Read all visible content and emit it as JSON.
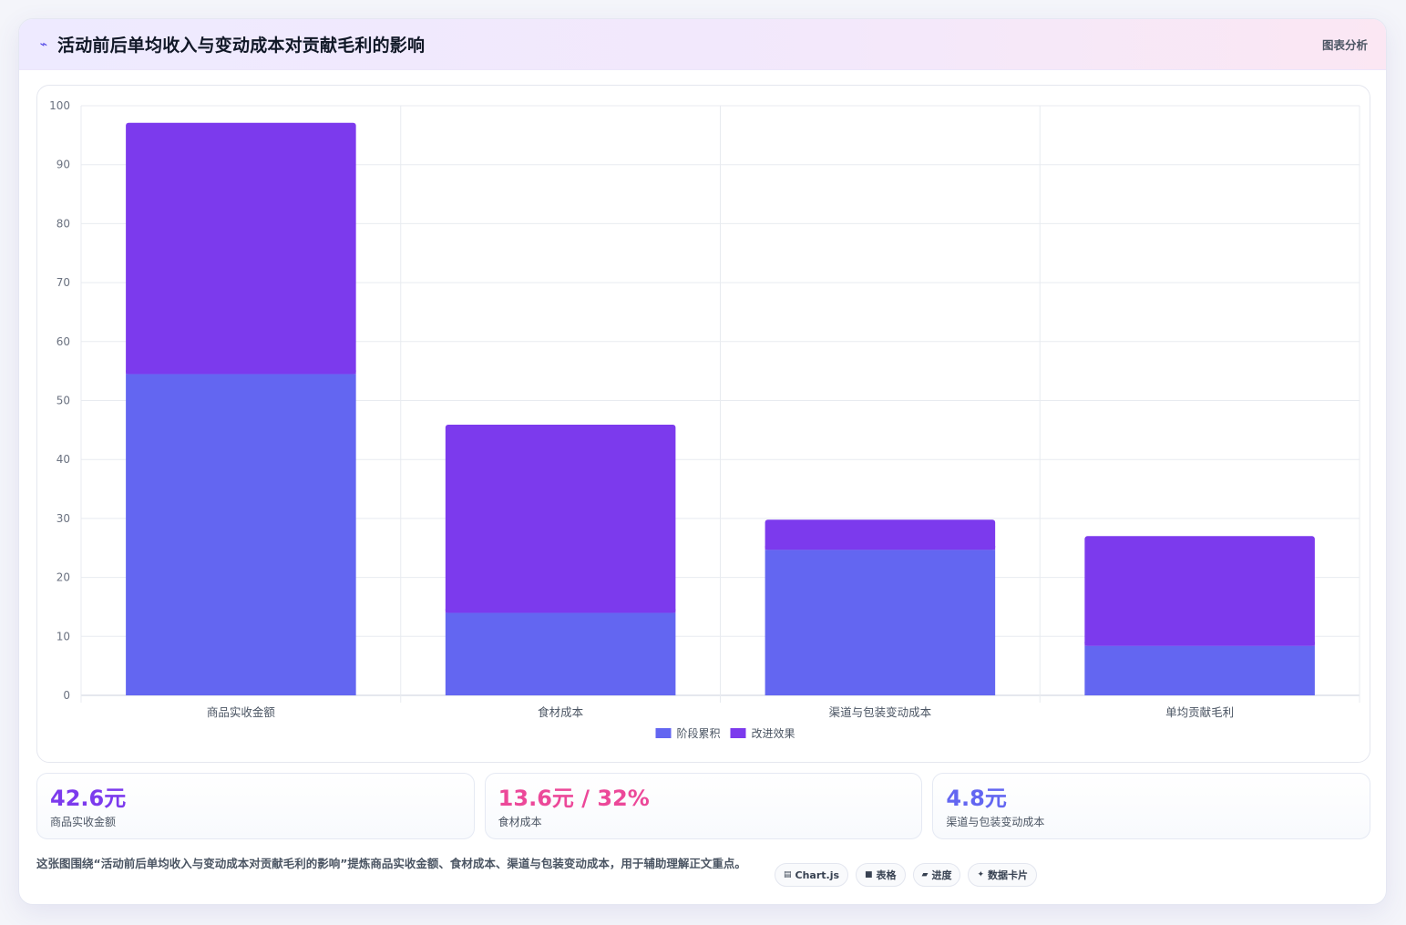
{
  "header": {
    "title_icon": "trend-icon",
    "title": "活动前后单均收入与变动成本对贡献毛利的影响",
    "tag": "图表分析"
  },
  "chart_data": {
    "type": "bar",
    "stacked": true,
    "categories": [
      "商品实收金额",
      "食材成本",
      "渠道与包装变动成本",
      "单均贡献毛利"
    ],
    "series": [
      {
        "name": "阶段累积",
        "color": "#6366f1",
        "values": [
          54.5,
          14,
          24.7,
          8.4
        ]
      },
      {
        "name": "改进效果",
        "color": "#7c3aed",
        "values": [
          42.6,
          31.9,
          5.1,
          18.6
        ]
      }
    ],
    "ylim": [
      0,
      100
    ],
    "yticks": [
      0,
      10,
      20,
      30,
      40,
      50,
      60,
      70,
      80,
      90,
      100
    ],
    "grid": true,
    "legend_position": "bottom"
  },
  "kpis": [
    {
      "value": "42.6元",
      "label": "商品实收金额",
      "color": "#7c3aed"
    },
    {
      "value": "13.6元 / 32%",
      "label": "食材成本",
      "color": "#ec4899"
    },
    {
      "value": "4.8元",
      "label": "渠道与包装变动成本",
      "color": "#6366f1"
    }
  ],
  "footer": {
    "description": "这张图围绕“活动前后单均收入与变动成本对贡献毛利的影响”提炼商品实收金额、食材成本、渠道与包装变动成本，用于辅助理解正文重点。",
    "chips": [
      {
        "icon": "chart-icon",
        "glyph": "▤",
        "label": "Chart.js"
      },
      {
        "icon": "table-icon",
        "glyph": "■",
        "label": "表格"
      },
      {
        "icon": "progress-icon",
        "glyph": "▰",
        "label": "进度"
      },
      {
        "icon": "sparkle-icon",
        "glyph": "✦",
        "label": "数据卡片"
      }
    ]
  }
}
